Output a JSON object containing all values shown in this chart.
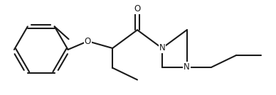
{
  "bg_color": "#ffffff",
  "line_color": "#1a1a1a",
  "lw": 1.5,
  "fs": 8.5,
  "figsize": [
    3.88,
    1.34
  ],
  "dpi": 100,
  "xlim": [
    0,
    7.8
  ],
  "ylim": [
    0,
    2.68
  ]
}
